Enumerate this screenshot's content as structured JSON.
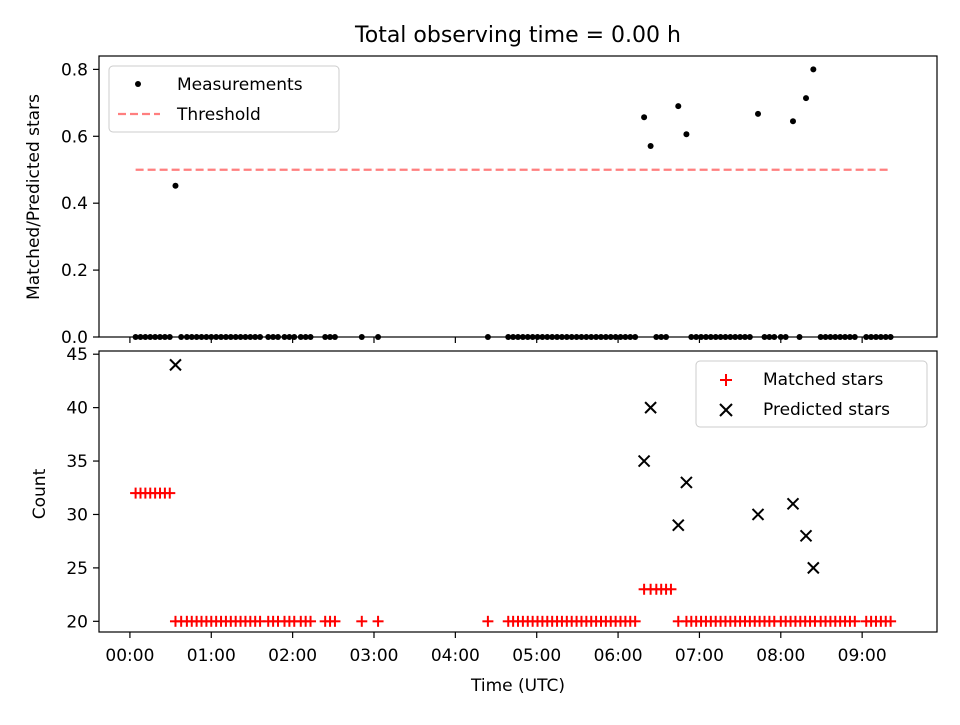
{
  "chart_data": {
    "title": "Total observing time = 0.00 h",
    "xlabel": "Time (UTC)",
    "xlim_hours": [
      -0.38,
      9.92
    ],
    "x_ticks": [
      "00:00",
      "01:00",
      "02:00",
      "03:00",
      "04:00",
      "05:00",
      "06:00",
      "07:00",
      "08:00",
      "09:00"
    ],
    "top": {
      "type": "scatter",
      "ylabel": "Matched/Predicted stars",
      "ylim": [
        0,
        0.84
      ],
      "y_ticks": [
        "0.0",
        "0.2",
        "0.4",
        "0.6",
        "0.8"
      ],
      "legend": {
        "position": "upper left",
        "entries": [
          "Measurements",
          "Threshold"
        ]
      },
      "threshold": {
        "value": 0.5,
        "x_start_hours": 0.07,
        "x_end_hours": 9.33,
        "color": "#ff7f7f"
      },
      "measurements": [
        [
          0.07,
          0
        ],
        [
          0.13,
          0
        ],
        [
          0.19,
          0
        ],
        [
          0.25,
          0
        ],
        [
          0.31,
          0
        ],
        [
          0.37,
          0
        ],
        [
          0.43,
          0
        ],
        [
          0.49,
          0
        ],
        [
          0.56,
          0.452
        ],
        [
          0.63,
          0
        ],
        [
          0.7,
          0
        ],
        [
          0.76,
          0
        ],
        [
          0.82,
          0
        ],
        [
          0.88,
          0
        ],
        [
          0.94,
          0
        ],
        [
          1.0,
          0
        ],
        [
          1.06,
          0
        ],
        [
          1.12,
          0
        ],
        [
          1.18,
          0
        ],
        [
          1.24,
          0
        ],
        [
          1.3,
          0
        ],
        [
          1.36,
          0
        ],
        [
          1.42,
          0
        ],
        [
          1.48,
          0
        ],
        [
          1.54,
          0
        ],
        [
          1.6,
          0
        ],
        [
          1.7,
          0
        ],
        [
          1.76,
          0
        ],
        [
          1.82,
          0
        ],
        [
          1.9,
          0
        ],
        [
          1.96,
          0
        ],
        [
          2.02,
          0
        ],
        [
          2.1,
          0
        ],
        [
          2.16,
          0
        ],
        [
          2.22,
          0
        ],
        [
          2.4,
          0
        ],
        [
          2.46,
          0
        ],
        [
          2.52,
          0
        ],
        [
          2.85,
          0
        ],
        [
          3.05,
          0
        ],
        [
          4.4,
          0
        ],
        [
          4.65,
          0
        ],
        [
          4.71,
          0
        ],
        [
          4.77,
          0
        ],
        [
          4.83,
          0
        ],
        [
          4.89,
          0
        ],
        [
          4.95,
          0
        ],
        [
          5.01,
          0
        ],
        [
          5.07,
          0
        ],
        [
          5.13,
          0
        ],
        [
          5.19,
          0
        ],
        [
          5.25,
          0
        ],
        [
          5.31,
          0
        ],
        [
          5.37,
          0
        ],
        [
          5.43,
          0
        ],
        [
          5.49,
          0
        ],
        [
          5.55,
          0
        ],
        [
          5.61,
          0
        ],
        [
          5.67,
          0
        ],
        [
          5.73,
          0
        ],
        [
          5.79,
          0
        ],
        [
          5.85,
          0
        ],
        [
          5.91,
          0
        ],
        [
          5.97,
          0
        ],
        [
          6.03,
          0
        ],
        [
          6.09,
          0
        ],
        [
          6.15,
          0
        ],
        [
          6.21,
          0
        ],
        [
          6.32,
          0.657
        ],
        [
          6.4,
          0.571
        ],
        [
          6.47,
          0
        ],
        [
          6.53,
          0
        ],
        [
          6.59,
          0
        ],
        [
          6.74,
          0.69
        ],
        [
          6.84,
          0.606
        ],
        [
          6.9,
          0
        ],
        [
          6.96,
          0
        ],
        [
          7.02,
          0
        ],
        [
          7.08,
          0
        ],
        [
          7.14,
          0
        ],
        [
          7.2,
          0
        ],
        [
          7.26,
          0
        ],
        [
          7.32,
          0
        ],
        [
          7.38,
          0
        ],
        [
          7.44,
          0
        ],
        [
          7.5,
          0
        ],
        [
          7.56,
          0
        ],
        [
          7.62,
          0
        ],
        [
          7.72,
          0.667
        ],
        [
          7.8,
          0
        ],
        [
          7.86,
          0
        ],
        [
          7.92,
          0
        ],
        [
          8.0,
          0
        ],
        [
          8.06,
          0
        ],
        [
          8.15,
          0.645
        ],
        [
          8.23,
          0
        ],
        [
          8.31,
          0.714
        ],
        [
          8.4,
          0.8
        ],
        [
          8.49,
          0
        ],
        [
          8.55,
          0
        ],
        [
          8.61,
          0
        ],
        [
          8.67,
          0
        ],
        [
          8.73,
          0
        ],
        [
          8.79,
          0
        ],
        [
          8.85,
          0
        ],
        [
          8.91,
          0
        ],
        [
          9.05,
          0
        ],
        [
          9.11,
          0
        ],
        [
          9.17,
          0
        ],
        [
          9.23,
          0
        ],
        [
          9.29,
          0
        ],
        [
          9.35,
          0
        ]
      ]
    },
    "bottom": {
      "type": "scatter",
      "ylabel": "Count",
      "ylim": [
        19,
        45.3
      ],
      "y_ticks": [
        "20",
        "25",
        "30",
        "35",
        "40",
        "45"
      ],
      "legend": {
        "position": "upper right",
        "entries": [
          "Matched stars",
          "Predicted stars"
        ]
      },
      "matched_color": "#ff0000",
      "predicted_color": "#000000",
      "matched": [
        [
          0.07,
          32
        ],
        [
          0.13,
          32
        ],
        [
          0.19,
          32
        ],
        [
          0.25,
          32
        ],
        [
          0.31,
          32
        ],
        [
          0.37,
          32
        ],
        [
          0.43,
          32
        ],
        [
          0.49,
          32
        ],
        [
          0.56,
          20
        ],
        [
          0.63,
          20
        ],
        [
          0.7,
          20
        ],
        [
          0.76,
          20
        ],
        [
          0.82,
          20
        ],
        [
          0.88,
          20
        ],
        [
          0.94,
          20
        ],
        [
          1.0,
          20
        ],
        [
          1.06,
          20
        ],
        [
          1.12,
          20
        ],
        [
          1.18,
          20
        ],
        [
          1.24,
          20
        ],
        [
          1.3,
          20
        ],
        [
          1.36,
          20
        ],
        [
          1.42,
          20
        ],
        [
          1.48,
          20
        ],
        [
          1.54,
          20
        ],
        [
          1.6,
          20
        ],
        [
          1.7,
          20
        ],
        [
          1.76,
          20
        ],
        [
          1.82,
          20
        ],
        [
          1.9,
          20
        ],
        [
          1.96,
          20
        ],
        [
          2.02,
          20
        ],
        [
          2.1,
          20
        ],
        [
          2.16,
          20
        ],
        [
          2.22,
          20
        ],
        [
          2.4,
          20
        ],
        [
          2.46,
          20
        ],
        [
          2.52,
          20
        ],
        [
          2.85,
          20
        ],
        [
          3.05,
          20
        ],
        [
          4.4,
          20
        ],
        [
          4.65,
          20
        ],
        [
          4.71,
          20
        ],
        [
          4.77,
          20
        ],
        [
          4.83,
          20
        ],
        [
          4.89,
          20
        ],
        [
          4.95,
          20
        ],
        [
          5.01,
          20
        ],
        [
          5.07,
          20
        ],
        [
          5.13,
          20
        ],
        [
          5.19,
          20
        ],
        [
          5.25,
          20
        ],
        [
          5.31,
          20
        ],
        [
          5.37,
          20
        ],
        [
          5.43,
          20
        ],
        [
          5.49,
          20
        ],
        [
          5.55,
          20
        ],
        [
          5.61,
          20
        ],
        [
          5.67,
          20
        ],
        [
          5.73,
          20
        ],
        [
          5.79,
          20
        ],
        [
          5.85,
          20
        ],
        [
          5.91,
          20
        ],
        [
          5.97,
          20
        ],
        [
          6.03,
          20
        ],
        [
          6.09,
          20
        ],
        [
          6.15,
          20
        ],
        [
          6.21,
          20
        ],
        [
          6.32,
          23
        ],
        [
          6.4,
          23
        ],
        [
          6.47,
          23
        ],
        [
          6.53,
          23
        ],
        [
          6.59,
          23
        ],
        [
          6.65,
          23
        ],
        [
          6.74,
          20
        ],
        [
          6.84,
          20
        ],
        [
          6.9,
          20
        ],
        [
          6.96,
          20
        ],
        [
          7.02,
          20
        ],
        [
          7.08,
          20
        ],
        [
          7.14,
          20
        ],
        [
          7.2,
          20
        ],
        [
          7.26,
          20
        ],
        [
          7.32,
          20
        ],
        [
          7.38,
          20
        ],
        [
          7.44,
          20
        ],
        [
          7.5,
          20
        ],
        [
          7.56,
          20
        ],
        [
          7.62,
          20
        ],
        [
          7.68,
          20
        ],
        [
          7.74,
          20
        ],
        [
          7.8,
          20
        ],
        [
          7.86,
          20
        ],
        [
          7.92,
          20
        ],
        [
          8.0,
          20
        ],
        [
          8.06,
          20
        ],
        [
          8.12,
          20
        ],
        [
          8.18,
          20
        ],
        [
          8.24,
          20
        ],
        [
          8.3,
          20
        ],
        [
          8.36,
          20
        ],
        [
          8.42,
          20
        ],
        [
          8.49,
          20
        ],
        [
          8.55,
          20
        ],
        [
          8.61,
          20
        ],
        [
          8.67,
          20
        ],
        [
          8.73,
          20
        ],
        [
          8.79,
          20
        ],
        [
          8.85,
          20
        ],
        [
          8.91,
          20
        ],
        [
          9.05,
          20
        ],
        [
          9.11,
          20
        ],
        [
          9.17,
          20
        ],
        [
          9.23,
          20
        ],
        [
          9.29,
          20
        ],
        [
          9.35,
          20
        ]
      ],
      "predicted": [
        [
          0.56,
          44
        ],
        [
          6.32,
          35
        ],
        [
          6.4,
          40
        ],
        [
          6.74,
          29
        ],
        [
          6.84,
          33
        ],
        [
          7.72,
          30
        ],
        [
          8.15,
          31
        ],
        [
          8.31,
          28
        ],
        [
          8.4,
          25
        ]
      ]
    }
  }
}
